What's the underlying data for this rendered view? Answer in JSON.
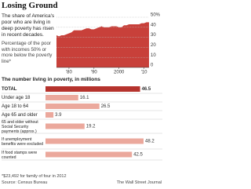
{
  "title": "Losing Ground",
  "chart_data": [
    {
      "type": "area",
      "title": "The share of America's poor who are living in deep poverty has risen in recent decades.",
      "subtitle": "Percentage of the poor with incomes 50% or more below the poverty line*",
      "x": [
        1975,
        1976,
        1977,
        1978,
        1979,
        1980,
        1981,
        1982,
        1983,
        1984,
        1985,
        1986,
        1987,
        1988,
        1989,
        1990,
        1991,
        1992,
        1993,
        1994,
        1995,
        1996,
        1997,
        1998,
        1999,
        2000,
        2001,
        2002,
        2003,
        2004,
        2005,
        2006,
        2007,
        2008,
        2009,
        2010,
        2011,
        2012
      ],
      "values": [
        32,
        31,
        32,
        32,
        33,
        34,
        35,
        37,
        37,
        37,
        37,
        38,
        39,
        39,
        38,
        38,
        39,
        40,
        41,
        40,
        40,
        40,
        41,
        41,
        41,
        40,
        40,
        42,
        42,
        43,
        43,
        43,
        43,
        43,
        44,
        44,
        45,
        45
      ],
      "color": "#c8403a",
      "xlim": [
        1975,
        2012
      ],
      "xticks": [
        {
          "value": 1980,
          "label": "'80"
        },
        {
          "value": 1990,
          "label": "'90"
        },
        2000,
        {
          "value": 2010,
          "label": "'10"
        }
      ],
      "ylim": [
        0,
        50
      ],
      "yticks": [
        0,
        10,
        20,
        30,
        40,
        {
          "value": 50,
          "label": "50%"
        }
      ],
      "grid": true
    },
    {
      "type": "hbar",
      "title": "The number living in poverty, in millions",
      "categories": [
        "TOTAL",
        "Under age 18",
        "Age 18 to 64",
        "Age 65 and older",
        "65 and older without Social Security payments (approx.)",
        "If unemployment benefits were excluded",
        "If food stamps were counted"
      ],
      "values": [
        46.5,
        16.1,
        26.5,
        3.9,
        19.2,
        48.2,
        42.5
      ],
      "colors": [
        "#b5332d",
        "#eba89c",
        "#eba89c",
        "#eba89c",
        "#eba89c",
        "#eba89c",
        "#eba89c"
      ]
    }
  ],
  "footnote": "*$23,492 for family of four in 2012",
  "source": "Source: Census Bureau",
  "credit": "The Wall Street Journal"
}
